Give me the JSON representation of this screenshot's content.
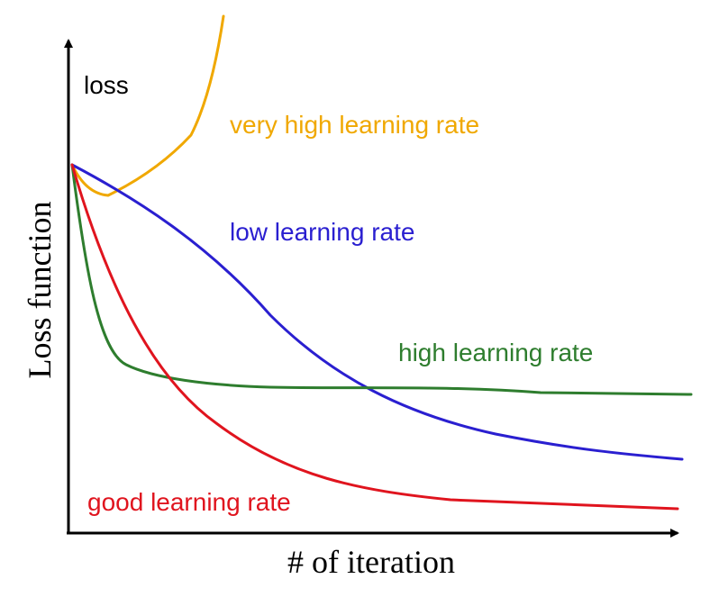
{
  "axis_labels": {
    "arrow": "loss",
    "y": "Loss function",
    "x": "# of iteration"
  },
  "curves": [
    {
      "label": "very high learning rate",
      "color": "#f0a800"
    },
    {
      "label": "low learning rate",
      "color": "#2a1fd0"
    },
    {
      "label": "high learning rate",
      "color": "#2e7d2e"
    },
    {
      "label": "good learning rate",
      "color": "#e0141e"
    }
  ]
}
